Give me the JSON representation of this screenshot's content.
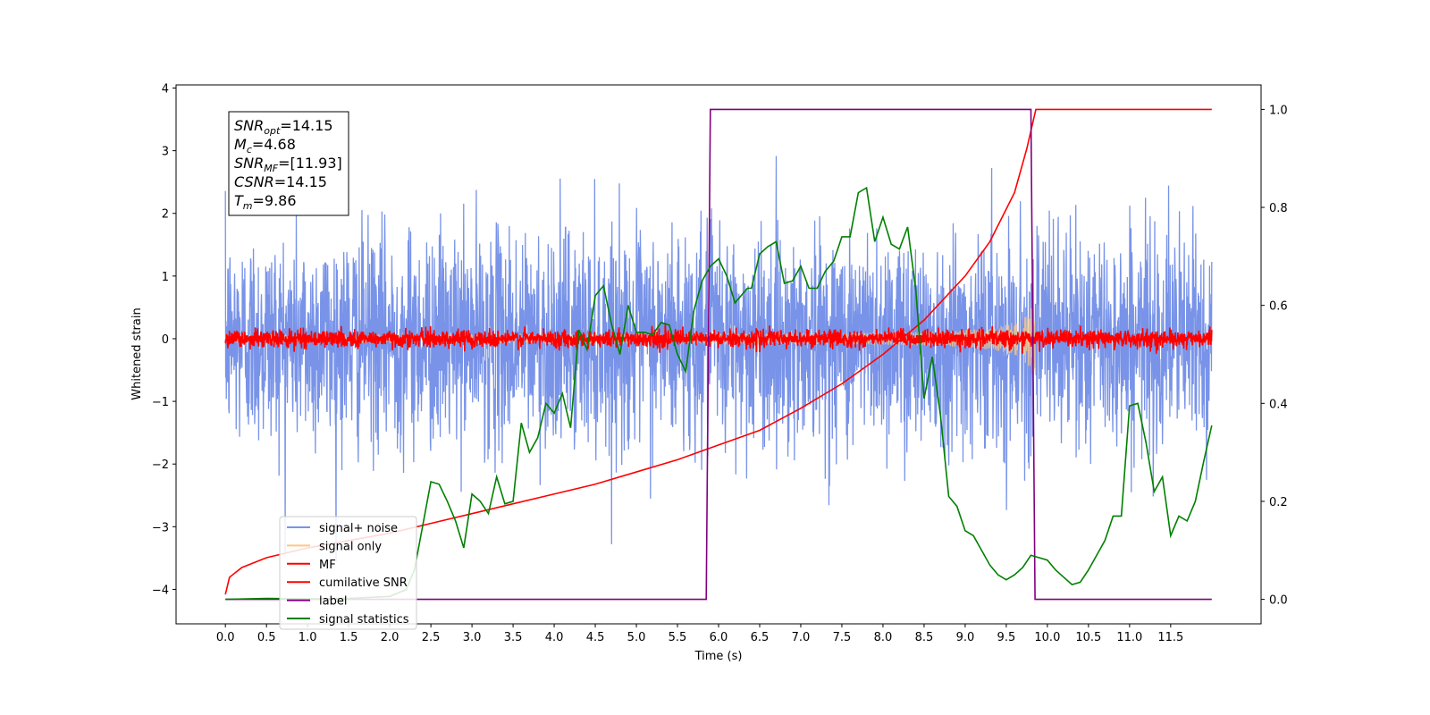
{
  "chart_data": {
    "type": "line",
    "xlabel": "Time (s)",
    "ylabel": "Whitened strain",
    "xlim": [
      -0.6,
      12.6
    ],
    "ylim": [
      -4.55,
      4.05
    ],
    "y2lim": [
      -0.05,
      1.05
    ],
    "x_ticks": [
      "0.0",
      "0.5",
      "1.0",
      "1.5",
      "2.0",
      "2.5",
      "3.0",
      "3.5",
      "4.0",
      "4.5",
      "5.0",
      "5.5",
      "6.0",
      "6.5",
      "7.0",
      "7.5",
      "8.0",
      "8.5",
      "9.0",
      "9.5",
      "10.0",
      "10.5",
      "11.0",
      "11.5"
    ],
    "y_ticks": [
      "4",
      "3",
      "2",
      "1",
      "0",
      "−1",
      "−2",
      "−3",
      "−4"
    ],
    "y2_ticks": [
      "1.0",
      "0.8",
      "0.6",
      "0.4",
      "0.2",
      "0.0"
    ],
    "annotation": [
      {
        "base": "SNR",
        "sub": "opt",
        "value": "=14.15"
      },
      {
        "base": "M",
        "sub": "c",
        "value": "=4.68"
      },
      {
        "base": "SNR",
        "sub": "MF",
        "value": "=[11.93]"
      },
      {
        "base": "CSNR",
        "sub": "",
        "value": "=14.15"
      },
      {
        "base": "T",
        "sub": "m",
        "value": "=9.86"
      }
    ],
    "legend_position": "lower-left",
    "series": [
      {
        "name": "signal+ noise",
        "color": "#7893e8",
        "axis": "left",
        "kind": "noise",
        "x_range": [
          0.0,
          12.0
        ],
        "envelope_std": 0.85,
        "value_range": [
          -3.7,
          3.7
        ]
      },
      {
        "name": "signal only",
        "color": "#ffc880",
        "axis": "left",
        "kind": "chirp",
        "x_range": [
          0.0,
          9.86
        ],
        "amplitude_start": 0.05,
        "amplitude_end": 0.75,
        "peak_time": 9.86
      },
      {
        "name": "MF",
        "color": "#ff0000",
        "axis": "left",
        "kind": "noise",
        "x_range": [
          0.0,
          12.0
        ],
        "envelope_std": 0.07,
        "value_range": [
          -0.3,
          0.3
        ]
      },
      {
        "name": "cumilative SNR",
        "color": "#ff0000",
        "axis": "right",
        "points": [
          [
            0.0,
            0.01
          ],
          [
            0.05,
            0.045
          ],
          [
            0.2,
            0.065
          ],
          [
            0.5,
            0.085
          ],
          [
            1.0,
            0.105
          ],
          [
            1.5,
            0.12
          ],
          [
            2.0,
            0.135
          ],
          [
            2.5,
            0.155
          ],
          [
            3.0,
            0.175
          ],
          [
            3.5,
            0.195
          ],
          [
            4.0,
            0.215
          ],
          [
            4.5,
            0.235
          ],
          [
            5.0,
            0.26
          ],
          [
            5.5,
            0.285
          ],
          [
            6.0,
            0.315
          ],
          [
            6.5,
            0.345
          ],
          [
            7.0,
            0.39
          ],
          [
            7.5,
            0.44
          ],
          [
            8.0,
            0.5
          ],
          [
            8.5,
            0.57
          ],
          [
            9.0,
            0.66
          ],
          [
            9.3,
            0.73
          ],
          [
            9.6,
            0.83
          ],
          [
            9.75,
            0.92
          ],
          [
            9.86,
            1.0
          ],
          [
            12.0,
            1.0
          ]
        ]
      },
      {
        "name": "label",
        "color": "#800080",
        "axis": "right",
        "points": [
          [
            0.0,
            0.0
          ],
          [
            5.85,
            0.0
          ],
          [
            5.9,
            1.0
          ],
          [
            9.8,
            1.0
          ],
          [
            9.85,
            0.0
          ],
          [
            12.0,
            0.0
          ]
        ]
      },
      {
        "name": "signal statistics",
        "color": "#008000",
        "axis": "right",
        "points": [
          [
            0.0,
            0.0
          ],
          [
            0.5,
            0.002
          ],
          [
            1.0,
            0.001
          ],
          [
            1.5,
            0.002
          ],
          [
            2.0,
            0.006
          ],
          [
            2.2,
            0.02
          ],
          [
            2.3,
            0.06
          ],
          [
            2.4,
            0.15
          ],
          [
            2.5,
            0.24
          ],
          [
            2.6,
            0.235
          ],
          [
            2.7,
            0.2
          ],
          [
            2.8,
            0.16
          ],
          [
            2.9,
            0.105
          ],
          [
            3.0,
            0.215
          ],
          [
            3.1,
            0.2
          ],
          [
            3.2,
            0.175
          ],
          [
            3.3,
            0.25
          ],
          [
            3.4,
            0.195
          ],
          [
            3.5,
            0.2
          ],
          [
            3.6,
            0.36
          ],
          [
            3.7,
            0.3
          ],
          [
            3.8,
            0.33
          ],
          [
            3.9,
            0.4
          ],
          [
            4.0,
            0.38
          ],
          [
            4.1,
            0.42
          ],
          [
            4.2,
            0.35
          ],
          [
            4.3,
            0.55
          ],
          [
            4.4,
            0.51
          ],
          [
            4.5,
            0.62
          ],
          [
            4.6,
            0.64
          ],
          [
            4.7,
            0.56
          ],
          [
            4.8,
            0.5
          ],
          [
            4.9,
            0.6
          ],
          [
            5.0,
            0.545
          ],
          [
            5.1,
            0.545
          ],
          [
            5.2,
            0.54
          ],
          [
            5.3,
            0.565
          ],
          [
            5.4,
            0.56
          ],
          [
            5.5,
            0.5
          ],
          [
            5.6,
            0.465
          ],
          [
            5.7,
            0.59
          ],
          [
            5.8,
            0.65
          ],
          [
            5.9,
            0.68
          ],
          [
            6.0,
            0.695
          ],
          [
            6.1,
            0.66
          ],
          [
            6.2,
            0.605
          ],
          [
            6.3,
            0.625
          ],
          [
            6.35,
            0.635
          ],
          [
            6.4,
            0.635
          ],
          [
            6.5,
            0.705
          ],
          [
            6.6,
            0.72
          ],
          [
            6.7,
            0.73
          ],
          [
            6.8,
            0.645
          ],
          [
            6.9,
            0.65
          ],
          [
            7.0,
            0.68
          ],
          [
            7.1,
            0.635
          ],
          [
            7.2,
            0.635
          ],
          [
            7.3,
            0.67
          ],
          [
            7.4,
            0.69
          ],
          [
            7.5,
            0.74
          ],
          [
            7.6,
            0.74
          ],
          [
            7.7,
            0.83
          ],
          [
            7.8,
            0.84
          ],
          [
            7.9,
            0.73
          ],
          [
            8.0,
            0.78
          ],
          [
            8.1,
            0.725
          ],
          [
            8.2,
            0.715
          ],
          [
            8.3,
            0.76
          ],
          [
            8.4,
            0.63
          ],
          [
            8.5,
            0.41
          ],
          [
            8.6,
            0.495
          ],
          [
            8.7,
            0.375
          ],
          [
            8.8,
            0.21
          ],
          [
            8.9,
            0.19
          ],
          [
            9.0,
            0.14
          ],
          [
            9.1,
            0.13
          ],
          [
            9.2,
            0.1
          ],
          [
            9.3,
            0.07
          ],
          [
            9.4,
            0.05
          ],
          [
            9.5,
            0.04
          ],
          [
            9.6,
            0.05
          ],
          [
            9.7,
            0.065
          ],
          [
            9.8,
            0.09
          ],
          [
            9.9,
            0.085
          ],
          [
            10.0,
            0.08
          ],
          [
            10.1,
            0.06
          ],
          [
            10.2,
            0.045
          ],
          [
            10.3,
            0.03
          ],
          [
            10.4,
            0.035
          ],
          [
            10.5,
            0.06
          ],
          [
            10.6,
            0.09
          ],
          [
            10.7,
            0.12
          ],
          [
            10.8,
            0.17
          ],
          [
            10.9,
            0.17
          ],
          [
            11.0,
            0.395
          ],
          [
            11.1,
            0.4
          ],
          [
            11.2,
            0.32
          ],
          [
            11.3,
            0.22
          ],
          [
            11.4,
            0.25
          ],
          [
            11.5,
            0.13
          ],
          [
            11.6,
            0.17
          ],
          [
            11.7,
            0.16
          ],
          [
            11.8,
            0.2
          ],
          [
            11.9,
            0.28
          ],
          [
            12.0,
            0.355
          ]
        ]
      }
    ]
  }
}
